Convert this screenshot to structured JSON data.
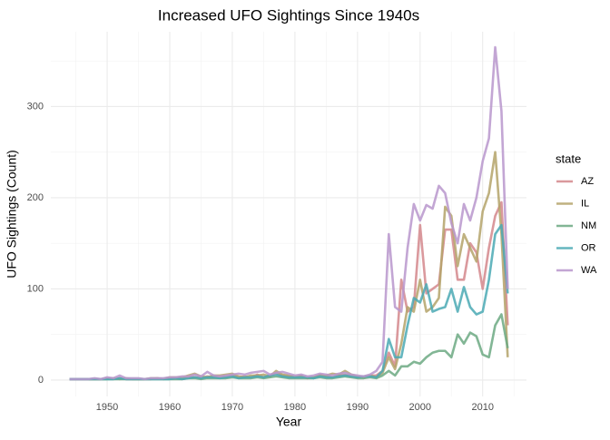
{
  "chart_data": {
    "type": "line",
    "title": "Increased UFO Sightings Since 1940s",
    "x_label": "Year",
    "y_label": "UFO Sightings (Count)",
    "legend_title": "state",
    "x": [
      1944,
      1945,
      1946,
      1947,
      1948,
      1949,
      1950,
      1951,
      1952,
      1953,
      1954,
      1955,
      1956,
      1957,
      1958,
      1959,
      1960,
      1961,
      1962,
      1963,
      1964,
      1965,
      1966,
      1967,
      1968,
      1969,
      1970,
      1971,
      1972,
      1973,
      1974,
      1975,
      1976,
      1977,
      1978,
      1979,
      1980,
      1981,
      1982,
      1983,
      1984,
      1985,
      1986,
      1987,
      1988,
      1989,
      1990,
      1991,
      1992,
      1993,
      1994,
      1995,
      1996,
      1997,
      1998,
      1999,
      2000,
      2001,
      2002,
      2003,
      2004,
      2005,
      2006,
      2007,
      2008,
      2009,
      2010,
      2011,
      2012,
      2013,
      2014
    ],
    "series": [
      {
        "name": "AZ",
        "color": "#d4878c",
        "values": [
          1,
          1,
          1,
          1,
          1,
          1,
          2,
          1,
          2,
          1,
          1,
          1,
          1,
          1,
          2,
          1,
          2,
          2,
          1,
          3,
          3,
          2,
          4,
          3,
          4,
          3,
          5,
          3,
          4,
          3,
          6,
          3,
          4,
          8,
          5,
          4,
          3,
          5,
          2,
          3,
          6,
          4,
          3,
          5,
          6,
          4,
          3,
          4,
          5,
          5,
          10,
          30,
          15,
          110,
          75,
          80,
          170,
          95,
          100,
          105,
          165,
          165,
          110,
          110,
          150,
          140,
          100,
          145,
          180,
          195,
          60
        ]
      },
      {
        "name": "IL",
        "color": "#b4a36a",
        "values": [
          1,
          1,
          1,
          1,
          1,
          1,
          1,
          2,
          1,
          2,
          1,
          1,
          1,
          2,
          2,
          1,
          3,
          3,
          3,
          5,
          7,
          4,
          3,
          5,
          5,
          6,
          7,
          4,
          3,
          5,
          5,
          6,
          4,
          10,
          6,
          5,
          4,
          4,
          3,
          3,
          5,
          5,
          7,
          6,
          10,
          6,
          4,
          3,
          5,
          3,
          8,
          25,
          12,
          40,
          80,
          75,
          110,
          75,
          80,
          90,
          190,
          180,
          125,
          160,
          145,
          130,
          185,
          205,
          250,
          160,
          25
        ]
      },
      {
        "name": "NM",
        "color": "#6ca982",
        "values": [
          1,
          1,
          1,
          1,
          1,
          1,
          1,
          1,
          1,
          1,
          1,
          1,
          1,
          1,
          1,
          1,
          1,
          1,
          1,
          2,
          2,
          1,
          2,
          2,
          2,
          2,
          3,
          2,
          2,
          2,
          3,
          2,
          3,
          4,
          3,
          2,
          2,
          2,
          2,
          2,
          3,
          2,
          2,
          3,
          4,
          3,
          2,
          2,
          3,
          2,
          5,
          10,
          5,
          15,
          15,
          20,
          18,
          25,
          30,
          32,
          32,
          25,
          50,
          40,
          52,
          48,
          28,
          25,
          60,
          72,
          35
        ]
      },
      {
        "name": "OR",
        "color": "#4aa9b4",
        "values": [
          1,
          1,
          1,
          1,
          1,
          1,
          1,
          1,
          2,
          1,
          1,
          1,
          1,
          1,
          1,
          1,
          1,
          2,
          1,
          2,
          3,
          2,
          3,
          3,
          2,
          3,
          4,
          2,
          3,
          3,
          4,
          3,
          5,
          6,
          4,
          3,
          3,
          3,
          3,
          2,
          4,
          3,
          3,
          4,
          5,
          4,
          3,
          4,
          4,
          3,
          10,
          45,
          25,
          25,
          60,
          90,
          85,
          105,
          75,
          78,
          80,
          100,
          75,
          102,
          80,
          72,
          75,
          110,
          160,
          170,
          95
        ]
      },
      {
        "name": "WA",
        "color": "#b896cc",
        "values": [
          1,
          1,
          1,
          1,
          2,
          1,
          3,
          2,
          5,
          2,
          2,
          2,
          1,
          2,
          2,
          2,
          3,
          3,
          4,
          4,
          6,
          4,
          9,
          5,
          4,
          5,
          6,
          7,
          6,
          8,
          9,
          10,
          6,
          8,
          9,
          7,
          5,
          6,
          4,
          5,
          7,
          6,
          5,
          7,
          8,
          6,
          5,
          4,
          6,
          10,
          20,
          160,
          80,
          75,
          145,
          193,
          175,
          192,
          188,
          213,
          205,
          172,
          150,
          193,
          175,
          200,
          240,
          265,
          365,
          295,
          100
        ]
      }
    ],
    "xlim": [
      1941,
      2017
    ],
    "xticks": [
      1950,
      1960,
      1970,
      1980,
      1990,
      2000,
      2010
    ],
    "ylim": [
      -18,
      382
    ],
    "yticks": [
      0,
      100,
      200,
      300
    ],
    "grid": true,
    "legend": "right"
  }
}
